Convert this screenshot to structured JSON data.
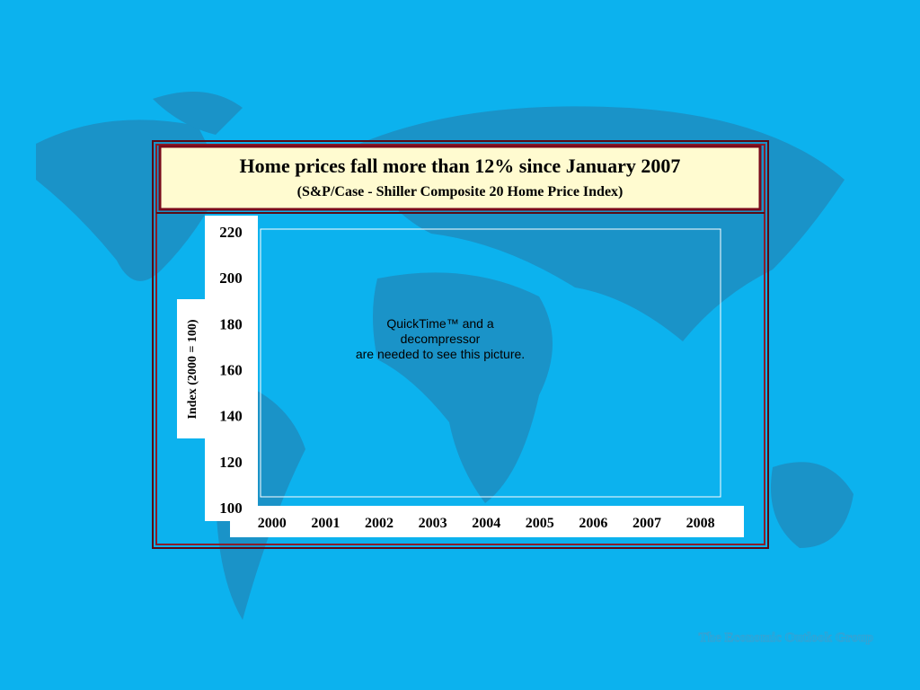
{
  "chart_data": {
    "type": "line",
    "title": "Home prices fall more than 12% since January 2007",
    "subtitle": "(S&P/Case - Shiller Composite 20 Home Price Index)",
    "y_label": "Index (2000 = 100)",
    "categories": [
      "2000",
      "2001",
      "2002",
      "2003",
      "2004",
      "2005",
      "2006",
      "2007",
      "2008"
    ],
    "ylim": [
      100,
      220
    ],
    "yticks": [
      100,
      120,
      140,
      160,
      180,
      200,
      220
    ],
    "placeholder": [
      "QuickTime™ and a",
      "decompressor",
      "are needed to see this picture."
    ]
  },
  "footer": "The Economic Outlook Group"
}
